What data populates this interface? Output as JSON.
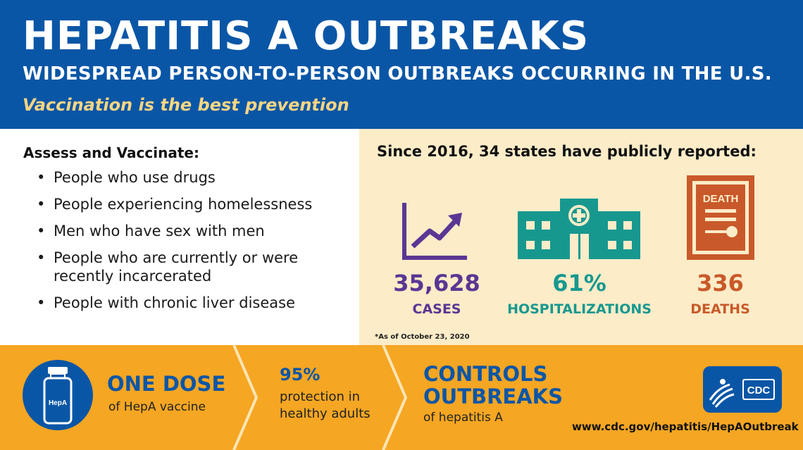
{
  "header": {
    "title": "HEPATITIS A OUTBREAKS",
    "subtitle": "WIDESPREAD PERSON-TO-PERSON OUTBREAKS OCCURRING IN THE U.S.",
    "tagline": "Vaccination is the best prevention"
  },
  "assess": {
    "title": "Assess and Vaccinate:",
    "bullet": "•",
    "items": [
      "People who use drugs",
      "People experiencing homelessness",
      "Men who have sex with men",
      "People who are currently or were recently incarcerated",
      "People with chronic liver disease"
    ]
  },
  "stats": {
    "title": "Since 2016, 34 states have publicly reported:",
    "cases": {
      "value": "35,628",
      "label": "CASES",
      "icon": "rising-chart-icon"
    },
    "hospitalizations": {
      "value": "61%",
      "label": "HOSPITALIZATIONS",
      "icon": "hospital-icon"
    },
    "deaths": {
      "value": "336",
      "label": "DEATHS",
      "icon": "death-certificate-icon",
      "icon_text": "DEATH"
    },
    "footnote": "*As of October 23, 2020"
  },
  "bottom": {
    "vial_label": "HepA",
    "dose_title": "ONE DOSE",
    "dose_sub": "of HepA vaccine",
    "protection_title": "95%",
    "protection_sub": "protection in healthy adults",
    "controls_title": "CONTROLS OUTBREAKS",
    "controls_sub": "of hepatitis A",
    "logo_text": "CDC",
    "url": "www.cdc.gov/hepatitis/HepAOutbreak"
  },
  "colors": {
    "blue": "#0a56a6",
    "yellow_text": "#fcd583",
    "cream": "#fcecc8",
    "orange": "#f5a623",
    "purple": "#5b3694",
    "teal": "#17988f",
    "rust": "#c9592a"
  }
}
